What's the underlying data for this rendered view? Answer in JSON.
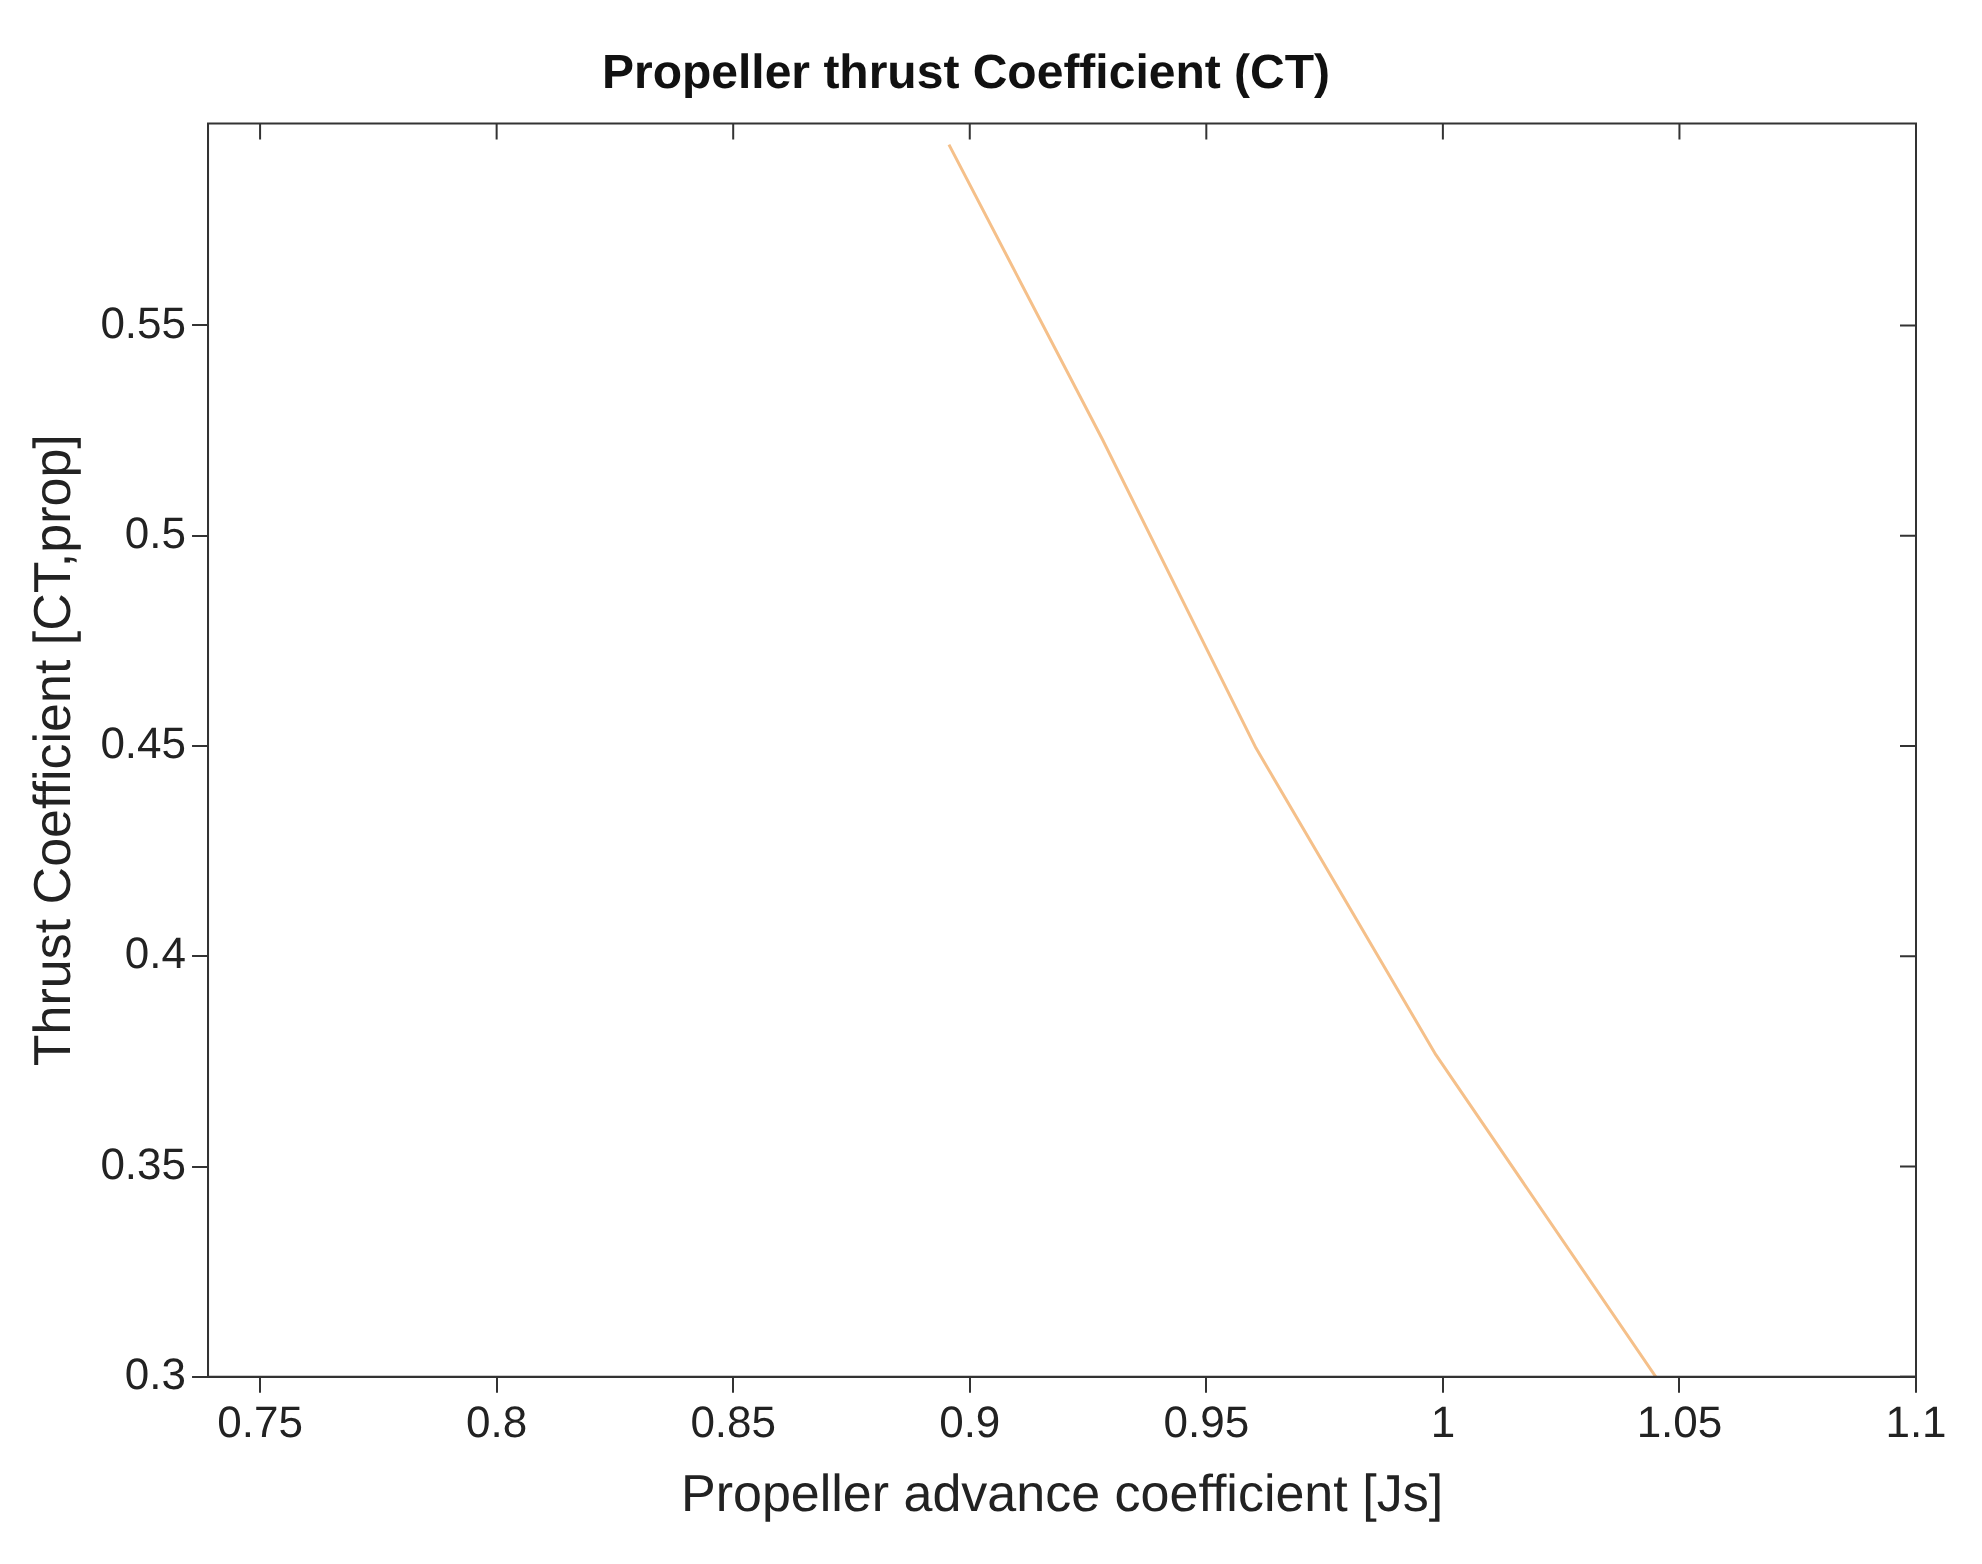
{
  "chart_data": {
    "type": "line",
    "title": "Propeller thrust Coefficient (CT)",
    "xlabel": "Propeller advance coefficient [Js]",
    "ylabel": "Thrust Coefficient [CT,prop]",
    "x": [
      0.8956,
      0.928,
      0.9605,
      0.9985,
      1.045
    ],
    "series": [
      {
        "color": "#f5c08a",
        "values": [
          0.593,
          0.523,
          0.4495,
          0.3766,
          0.3
        ]
      }
    ],
    "xlim": [
      0.739,
      1.1
    ],
    "xticks": [
      0.75,
      0.8,
      0.85,
      0.9,
      0.95,
      1,
      1.05,
      1.1
    ],
    "ylim": [
      0.3,
      0.598
    ],
    "yticks": [
      0.3,
      0.35,
      0.4,
      0.45,
      0.5,
      0.55
    ],
    "grid": false,
    "legend": false,
    "marker": "none",
    "line_style": "solid"
  }
}
